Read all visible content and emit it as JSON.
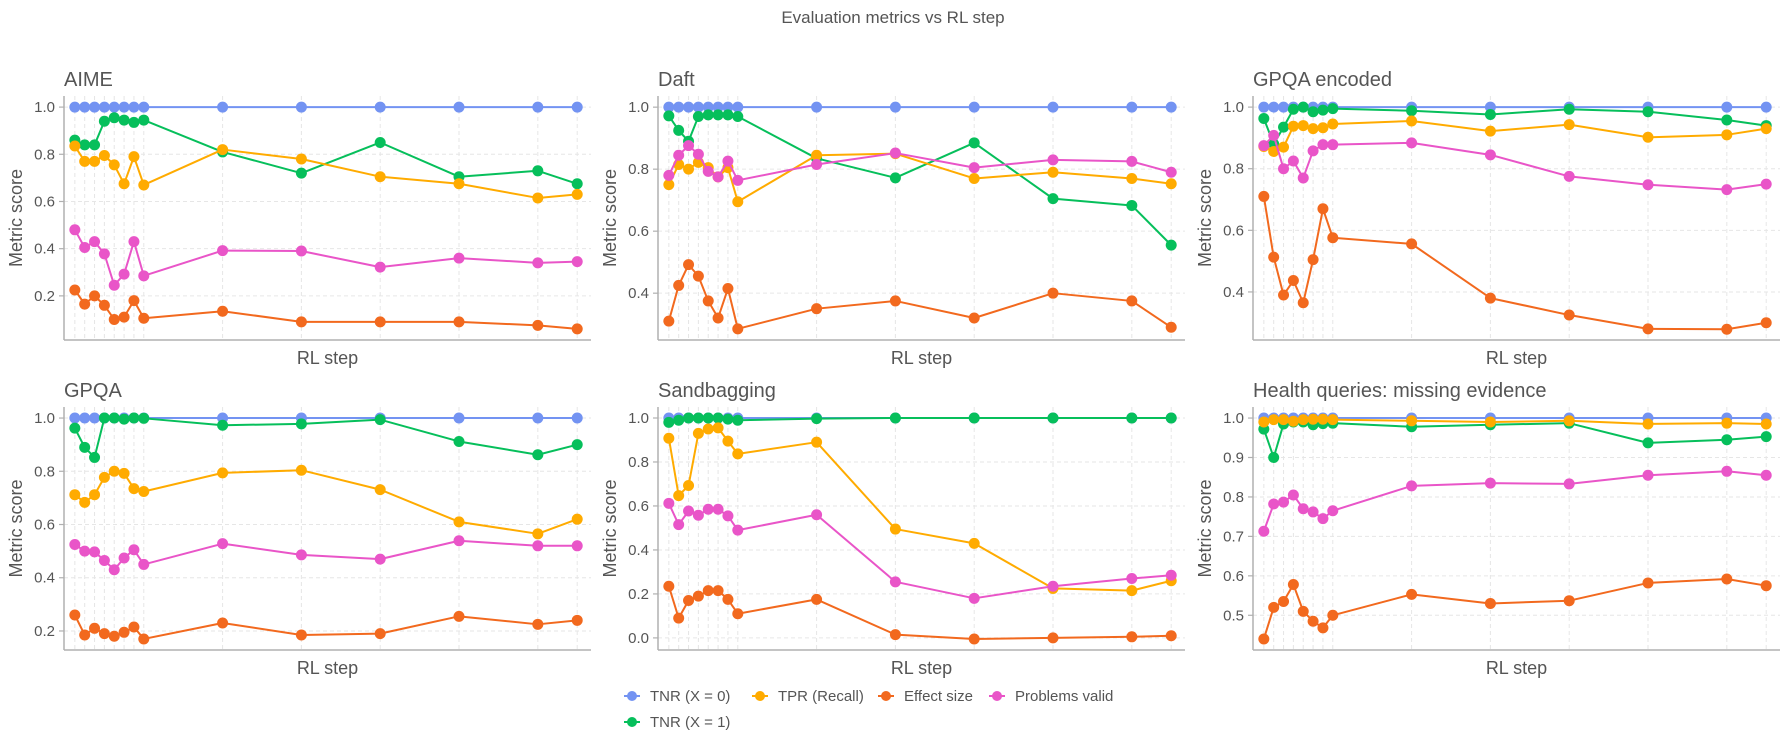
{
  "title": "Evaluation metrics vs RL step",
  "legend": {
    "placement": "bottom-center",
    "items": [
      {
        "key": "tnr0",
        "label": "TNR (X = 0)",
        "color": "#7393f2"
      },
      {
        "key": "tnr1",
        "label": "TNR (X = 1)",
        "color": "#06bf5b"
      },
      {
        "key": "tpr",
        "label": "TPR (Recall)",
        "color": "#ffab00"
      },
      {
        "key": "effect",
        "label": "Effect size",
        "color": "#f2691e"
      },
      {
        "key": "valid",
        "label": "Problems valid",
        "color": "#e955c8"
      }
    ]
  },
  "chart_data": [
    {
      "type": "line",
      "title": "AIME",
      "xlabel": "RL step",
      "ylabel": "Metric score",
      "x": [
        0,
        10,
        20,
        30,
        40,
        50,
        60,
        70,
        150,
        230,
        310,
        390,
        470,
        510
      ],
      "xlim": [
        -11,
        524
      ],
      "ylim": [
        0.013,
        1.047
      ],
      "yticks": [
        0.2,
        0.4,
        0.6,
        0.8,
        1.0
      ],
      "ytick_labels": [
        "0.2",
        "0.4",
        "0.6",
        "0.8",
        "1.0"
      ],
      "grid": true,
      "series": [
        {
          "name": "TNR (X = 0)",
          "key": "tnr0",
          "values": [
            1,
            1,
            1,
            1,
            1,
            1,
            1,
            1,
            1,
            1,
            1,
            1,
            1,
            1
          ]
        },
        {
          "name": "TNR (X = 1)",
          "key": "tnr1",
          "values": [
            0.86,
            0.84,
            0.84,
            0.94,
            0.955,
            0.945,
            0.935,
            0.945,
            0.81,
            0.72,
            0.85,
            0.705,
            0.73,
            0.675
          ]
        },
        {
          "name": "TPR (Recall)",
          "key": "tpr",
          "values": [
            0.835,
            0.77,
            0.77,
            0.795,
            0.755,
            0.675,
            0.79,
            0.67,
            0.82,
            0.78,
            0.705,
            0.675,
            0.615,
            0.63
          ]
        },
        {
          "name": "Effect size",
          "key": "effect",
          "values": [
            0.225,
            0.165,
            0.2,
            0.16,
            0.1,
            0.11,
            0.18,
            0.105,
            0.135,
            0.09,
            0.09,
            0.09,
            0.075,
            0.06
          ]
        },
        {
          "name": "Problems valid",
          "key": "valid",
          "values": [
            0.48,
            0.405,
            0.43,
            0.378,
            0.245,
            0.292,
            0.43,
            0.285,
            0.392,
            0.39,
            0.322,
            0.36,
            0.34,
            0.345
          ]
        }
      ]
    },
    {
      "type": "line",
      "title": "Daft",
      "xlabel": "RL step",
      "ylabel": "Metric score",
      "x": [
        0,
        10,
        20,
        30,
        40,
        50,
        60,
        70,
        150,
        230,
        310,
        390,
        470,
        510
      ],
      "xlim": [
        -11,
        524
      ],
      "ylim": [
        0.249,
        1.036
      ],
      "yticks": [
        0.4,
        0.6,
        0.8,
        1.0
      ],
      "ytick_labels": [
        "0.4",
        "0.6",
        "0.8",
        "1.0"
      ],
      "grid": true,
      "series": [
        {
          "name": "TNR (X = 0)",
          "key": "tnr0",
          "values": [
            1,
            1,
            1,
            1,
            1,
            1,
            1,
            1,
            1,
            1,
            1,
            1,
            1,
            1
          ]
        },
        {
          "name": "TNR (X = 1)",
          "key": "tnr1",
          "values": [
            0.972,
            0.925,
            0.89,
            0.97,
            0.975,
            0.975,
            0.975,
            0.97,
            0.835,
            0.772,
            0.885,
            0.705,
            0.683,
            0.555
          ]
        },
        {
          "name": "TPR (Recall)",
          "key": "tpr",
          "values": [
            0.75,
            0.815,
            0.8,
            0.822,
            0.805,
            0.775,
            0.805,
            0.695,
            0.845,
            0.85,
            0.77,
            0.79,
            0.77,
            0.753
          ]
        },
        {
          "name": "Effect size",
          "key": "effect",
          "values": [
            0.31,
            0.425,
            0.492,
            0.455,
            0.375,
            0.32,
            0.415,
            0.285,
            0.35,
            0.375,
            0.32,
            0.4,
            0.375,
            0.29
          ]
        },
        {
          "name": "Problems valid",
          "key": "valid",
          "values": [
            0.78,
            0.845,
            0.876,
            0.848,
            0.793,
            0.775,
            0.826,
            0.764,
            0.815,
            0.852,
            0.805,
            0.83,
            0.825,
            0.79
          ]
        }
      ]
    },
    {
      "type": "line",
      "title": "GPQA encoded",
      "xlabel": "RL step",
      "ylabel": "Metric score",
      "x": [
        0,
        10,
        20,
        30,
        40,
        50,
        60,
        70,
        150,
        230,
        310,
        390,
        470,
        510
      ],
      "xlim": [
        -11,
        524
      ],
      "ylim": [
        0.244,
        1.036
      ],
      "yticks": [
        0.4,
        0.6,
        0.8,
        1.0
      ],
      "ytick_labels": [
        "0.4",
        "0.6",
        "0.8",
        "1.0"
      ],
      "grid": true,
      "series": [
        {
          "name": "TNR (X = 0)",
          "key": "tnr0",
          "values": [
            1,
            1,
            1,
            1,
            1,
            1,
            1,
            1,
            1,
            1,
            1,
            1,
            1,
            1
          ]
        },
        {
          "name": "TNR (X = 1)",
          "key": "tnr1",
          "values": [
            0.963,
            0.88,
            0.935,
            0.993,
            1.0,
            0.985,
            0.99,
            0.995,
            0.988,
            0.976,
            0.993,
            0.985,
            0.958,
            0.94
          ]
        },
        {
          "name": "TPR (Recall)",
          "key": "tpr",
          "values": [
            0.872,
            0.856,
            0.87,
            0.938,
            0.94,
            0.93,
            0.933,
            0.945,
            0.955,
            0.922,
            0.943,
            0.902,
            0.91,
            0.93
          ]
        },
        {
          "name": "Effect size",
          "key": "effect",
          "values": [
            0.71,
            0.513,
            0.39,
            0.437,
            0.365,
            0.505,
            0.67,
            0.576,
            0.556,
            0.38,
            0.325,
            0.28,
            0.279,
            0.3
          ]
        },
        {
          "name": "Problems valid",
          "key": "valid",
          "values": [
            0.875,
            0.908,
            0.8,
            0.825,
            0.77,
            0.858,
            0.878,
            0.878,
            0.884,
            0.845,
            0.775,
            0.748,
            0.732,
            0.75
          ]
        }
      ]
    },
    {
      "type": "line",
      "title": "GPQA",
      "xlabel": "RL step",
      "ylabel": "Metric score",
      "x": [
        0,
        10,
        20,
        30,
        40,
        50,
        60,
        70,
        150,
        230,
        310,
        390,
        470,
        510
      ],
      "xlim": [
        -11,
        524
      ],
      "ylim": [
        0.1285,
        1.0415
      ],
      "yticks": [
        0.2,
        0.4,
        0.6,
        0.8,
        1.0
      ],
      "ytick_labels": [
        "0.2",
        "0.4",
        "0.6",
        "0.8",
        "1.0"
      ],
      "grid": true,
      "series": [
        {
          "name": "TNR (X = 0)",
          "key": "tnr0",
          "values": [
            1,
            1,
            1,
            1,
            1,
            1,
            1,
            1,
            1,
            1,
            1,
            1,
            1,
            1
          ]
        },
        {
          "name": "TNR (X = 1)",
          "key": "tnr1",
          "values": [
            0.962,
            0.89,
            0.852,
            1.0,
            1.0,
            0.996,
            1.0,
            0.999,
            0.973,
            0.978,
            0.994,
            0.912,
            0.862,
            0.9
          ]
        },
        {
          "name": "TPR (Recall)",
          "key": "tpr",
          "values": [
            0.712,
            0.683,
            0.712,
            0.777,
            0.8,
            0.792,
            0.735,
            0.724,
            0.794,
            0.804,
            0.731,
            0.61,
            0.565,
            0.62
          ]
        },
        {
          "name": "Effect size",
          "key": "effect",
          "values": [
            0.26,
            0.185,
            0.21,
            0.19,
            0.18,
            0.195,
            0.215,
            0.17,
            0.23,
            0.185,
            0.19,
            0.255,
            0.225,
            0.24
          ]
        },
        {
          "name": "Problems valid",
          "key": "valid",
          "values": [
            0.525,
            0.5,
            0.497,
            0.465,
            0.43,
            0.474,
            0.505,
            0.45,
            0.528,
            0.486,
            0.47,
            0.539,
            0.52,
            0.52
          ]
        }
      ]
    },
    {
      "type": "line",
      "title": "Sandbagging",
      "xlabel": "RL step",
      "ylabel": "Metric score",
      "x": [
        0,
        10,
        20,
        30,
        40,
        50,
        60,
        70,
        150,
        230,
        310,
        390,
        470,
        510
      ],
      "xlim": [
        -11,
        524
      ],
      "ylim": [
        -0.055,
        1.05
      ],
      "yticks": [
        0.0,
        0.2,
        0.4,
        0.6,
        0.8,
        1.0
      ],
      "ytick_labels": [
        "0.0",
        "0.2",
        "0.4",
        "0.6",
        "0.8",
        "1.0"
      ],
      "grid": true,
      "series": [
        {
          "name": "TNR (X = 0)",
          "key": "tnr0",
          "values": [
            1,
            1,
            1,
            1,
            1,
            1,
            1,
            1,
            1,
            1,
            1,
            1,
            1,
            1
          ]
        },
        {
          "name": "TNR (X = 1)",
          "key": "tnr1",
          "values": [
            0.98,
            0.99,
            1.0,
            1.0,
            1.0,
            1.0,
            0.995,
            0.99,
            0.997,
            1.0,
            1.0,
            1.0,
            1.0,
            1.0
          ]
        },
        {
          "name": "TPR (Recall)",
          "key": "tpr",
          "values": [
            0.908,
            0.647,
            0.693,
            0.93,
            0.95,
            0.955,
            0.895,
            0.837,
            0.89,
            0.495,
            0.43,
            0.225,
            0.215,
            0.26
          ]
        },
        {
          "name": "Effect size",
          "key": "effect",
          "values": [
            0.235,
            0.09,
            0.17,
            0.19,
            0.215,
            0.215,
            0.175,
            0.11,
            0.175,
            0.015,
            -0.005,
            0.0,
            0.005,
            0.01
          ]
        },
        {
          "name": "Problems valid",
          "key": "valid",
          "values": [
            0.612,
            0.515,
            0.577,
            0.558,
            0.585,
            0.585,
            0.555,
            0.49,
            0.56,
            0.255,
            0.18,
            0.235,
            0.27,
            0.285
          ]
        }
      ]
    },
    {
      "type": "line",
      "title": "Health queries: missing evidence",
      "xlabel": "RL step",
      "ylabel": "Metric score",
      "x": [
        0,
        10,
        20,
        30,
        40,
        50,
        60,
        70,
        150,
        230,
        310,
        390,
        470,
        510
      ],
      "xlim": [
        -11,
        524
      ],
      "ylim": [
        0.412,
        1.028
      ],
      "yticks": [
        0.5,
        0.6,
        0.7,
        0.8,
        0.9,
        1.0
      ],
      "ytick_labels": [
        "0.5",
        "0.6",
        "0.7",
        "0.8",
        "0.9",
        "1.0"
      ],
      "grid": true,
      "series": [
        {
          "name": "TNR (X = 0)",
          "key": "tnr0",
          "values": [
            1,
            1,
            1,
            1,
            1,
            1,
            1,
            1,
            1,
            1,
            1,
            1,
            1,
            1
          ]
        },
        {
          "name": "TNR (X = 1)",
          "key": "tnr1",
          "values": [
            0.972,
            0.9,
            0.985,
            0.99,
            0.99,
            0.983,
            0.986,
            0.987,
            0.978,
            0.983,
            0.987,
            0.937,
            0.945,
            0.953
          ]
        },
        {
          "name": "TPR (Recall)",
          "key": "tpr",
          "values": [
            0.99,
            0.996,
            0.996,
            0.992,
            0.996,
            0.997,
            0.997,
            0.996,
            0.993,
            0.99,
            0.993,
            0.985,
            0.987,
            0.985
          ]
        },
        {
          "name": "Effect size",
          "key": "effect",
          "values": [
            0.44,
            0.52,
            0.535,
            0.578,
            0.51,
            0.485,
            0.468,
            0.5,
            0.553,
            0.53,
            0.537,
            0.582,
            0.592,
            0.575
          ]
        },
        {
          "name": "Problems valid",
          "key": "valid",
          "values": [
            0.713,
            0.782,
            0.787,
            0.805,
            0.77,
            0.762,
            0.745,
            0.765,
            0.828,
            0.835,
            0.833,
            0.855,
            0.865,
            0.855
          ]
        }
      ]
    }
  ]
}
